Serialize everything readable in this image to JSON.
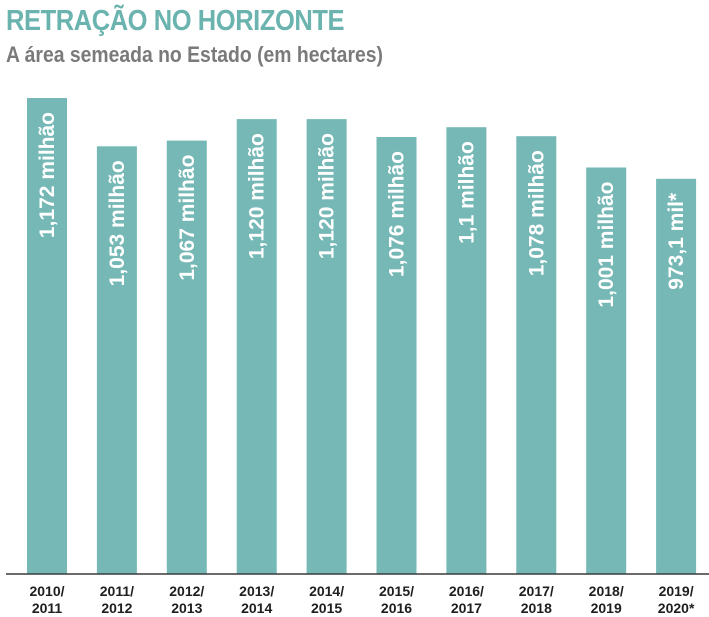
{
  "header": {
    "title": "RETRAÇÃO NO HORIZONTE",
    "subtitle": "A área semeada no Estado (em hectares)"
  },
  "colors": {
    "title": "#6ab3ae",
    "subtitle": "#7a7a7a",
    "bar": "#75b8b6",
    "bar_label": "#ffffff",
    "tick_label": "#1e1e1e"
  },
  "chart_data": {
    "type": "bar",
    "title": "RETRAÇÃO NO HORIZONTE",
    "subtitle": "A área semeada no Estado (em hectares)",
    "xlabel": "",
    "ylabel": "",
    "ylim": [
      0,
      1.172
    ],
    "grid": false,
    "categories": [
      [
        "2010/",
        "2011"
      ],
      [
        "2011/",
        "2012"
      ],
      [
        "2012/",
        "2013"
      ],
      [
        "2013/",
        "2014"
      ],
      [
        "2014/",
        "2015"
      ],
      [
        "2015/",
        "2016"
      ],
      [
        "2016/",
        "2017"
      ],
      [
        "2017/",
        "2018"
      ],
      [
        "2018/",
        "2019"
      ],
      [
        "2019/",
        "2020*"
      ]
    ],
    "values": [
      1.172,
      1.053,
      1.067,
      1.12,
      1.12,
      1.076,
      1.1,
      1.078,
      1.001,
      0.9731
    ],
    "data_labels": [
      "1,172 milhão",
      "1,053 milhão",
      "1,067 milhão",
      "1,120 milhão",
      "1,120 milhão",
      "1,076 milhão",
      "1,1 milhão",
      "1,078 milhão",
      "1,001 milhão",
      "973,1 mil*"
    ]
  }
}
